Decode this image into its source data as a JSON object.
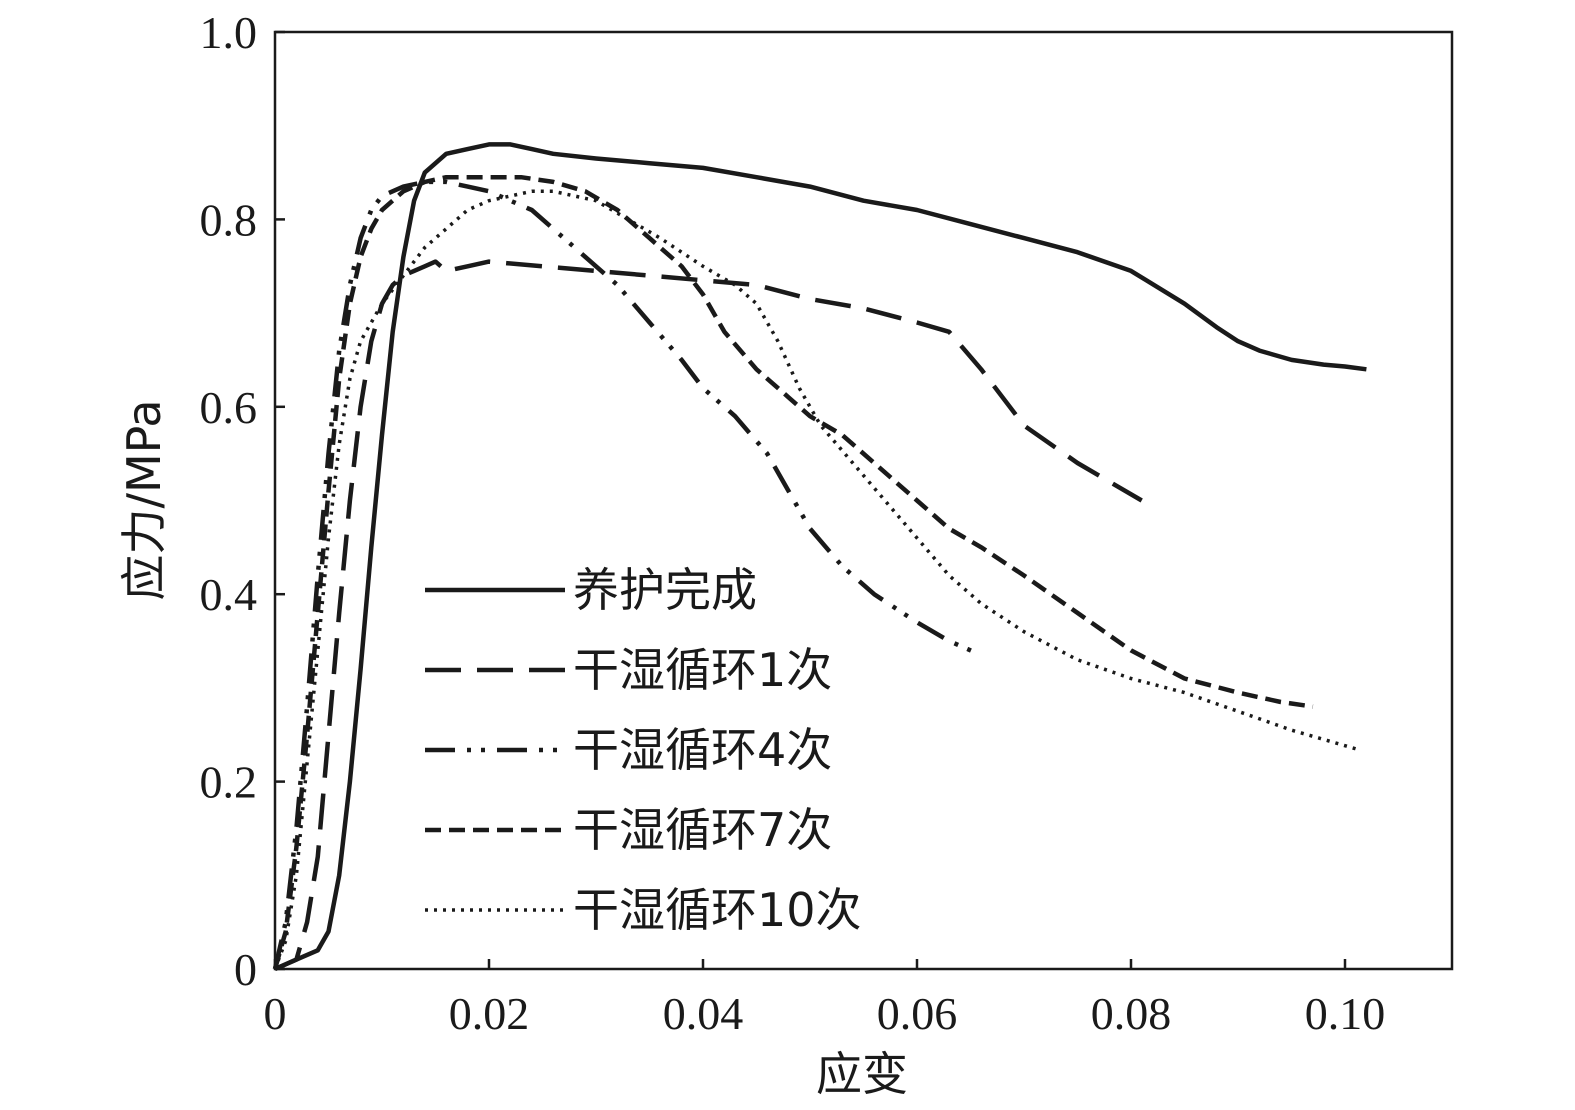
{
  "chart_data": {
    "type": "line",
    "xlabel": "应变",
    "ylabel": "应力/MPa",
    "xlim": [
      0,
      0.11
    ],
    "ylim": [
      0,
      1.0
    ],
    "xticks": [
      0,
      0.02,
      0.04,
      0.06,
      0.08,
      0.1
    ],
    "xtick_labels": [
      "0",
      "0.02",
      "0.04",
      "0.06",
      "0.08",
      "0.10"
    ],
    "yticks": [
      0,
      0.2,
      0.4,
      0.6,
      0.8,
      1.0
    ],
    "ytick_labels": [
      "0",
      "0.2",
      "0.4",
      "0.6",
      "0.8",
      "1.0"
    ],
    "grid": false,
    "legend_position": "center-left",
    "series": [
      {
        "name": "养护完成",
        "style": "solid",
        "x": [
          0,
          0.002,
          0.004,
          0.005,
          0.006,
          0.007,
          0.008,
          0.009,
          0.01,
          0.011,
          0.012,
          0.013,
          0.014,
          0.015,
          0.016,
          0.018,
          0.02,
          0.022,
          0.024,
          0.026,
          0.03,
          0.035,
          0.04,
          0.045,
          0.05,
          0.055,
          0.06,
          0.065,
          0.07,
          0.075,
          0.08,
          0.085,
          0.088,
          0.09,
          0.092,
          0.095,
          0.098,
          0.1,
          0.102
        ],
        "y": [
          0,
          0.01,
          0.02,
          0.04,
          0.1,
          0.2,
          0.32,
          0.45,
          0.57,
          0.68,
          0.76,
          0.82,
          0.85,
          0.86,
          0.87,
          0.875,
          0.88,
          0.88,
          0.875,
          0.87,
          0.865,
          0.86,
          0.855,
          0.845,
          0.835,
          0.82,
          0.81,
          0.795,
          0.78,
          0.765,
          0.745,
          0.71,
          0.685,
          0.67,
          0.66,
          0.65,
          0.645,
          0.643,
          0.64
        ]
      },
      {
        "name": "干湿循环1次",
        "style": "long-dash",
        "x": [
          0,
          0.002,
          0.003,
          0.004,
          0.005,
          0.006,
          0.007,
          0.008,
          0.009,
          0.01,
          0.011,
          0.012,
          0.013,
          0.014,
          0.015,
          0.016,
          0.018,
          0.02,
          0.025,
          0.03,
          0.035,
          0.04,
          0.045,
          0.05,
          0.055,
          0.06,
          0.063,
          0.066,
          0.07,
          0.075,
          0.078,
          0.081
        ],
        "y": [
          0,
          0.01,
          0.05,
          0.12,
          0.25,
          0.38,
          0.5,
          0.6,
          0.67,
          0.71,
          0.73,
          0.74,
          0.745,
          0.75,
          0.755,
          0.745,
          0.75,
          0.755,
          0.75,
          0.745,
          0.74,
          0.735,
          0.73,
          0.715,
          0.705,
          0.69,
          0.68,
          0.64,
          0.58,
          0.54,
          0.52,
          0.5
        ]
      },
      {
        "name": "干湿循环4次",
        "style": "dash-dot-dot",
        "x": [
          0,
          0.001,
          0.002,
          0.003,
          0.004,
          0.005,
          0.006,
          0.007,
          0.008,
          0.009,
          0.01,
          0.012,
          0.014,
          0.016,
          0.018,
          0.02,
          0.022,
          0.024,
          0.026,
          0.028,
          0.03,
          0.032,
          0.035,
          0.038,
          0.04,
          0.043,
          0.046,
          0.048,
          0.05,
          0.053,
          0.056,
          0.058,
          0.06,
          0.063,
          0.066
        ],
        "y": [
          0,
          0.05,
          0.15,
          0.28,
          0.42,
          0.55,
          0.66,
          0.73,
          0.78,
          0.81,
          0.825,
          0.835,
          0.84,
          0.84,
          0.835,
          0.83,
          0.82,
          0.81,
          0.79,
          0.77,
          0.75,
          0.73,
          0.69,
          0.65,
          0.62,
          0.59,
          0.55,
          0.51,
          0.47,
          0.43,
          0.4,
          0.385,
          0.37,
          0.35,
          0.335
        ]
      },
      {
        "name": "干湿循环7次",
        "style": "short-dash",
        "x": [
          0,
          0.001,
          0.002,
          0.003,
          0.004,
          0.005,
          0.006,
          0.007,
          0.008,
          0.009,
          0.01,
          0.012,
          0.014,
          0.016,
          0.018,
          0.02,
          0.023,
          0.026,
          0.029,
          0.032,
          0.035,
          0.038,
          0.04,
          0.042,
          0.045,
          0.048,
          0.05,
          0.053,
          0.056,
          0.058,
          0.06,
          0.063,
          0.066,
          0.07,
          0.075,
          0.08,
          0.085,
          0.09,
          0.094,
          0.097
        ],
        "y": [
          0,
          0.04,
          0.13,
          0.25,
          0.38,
          0.51,
          0.63,
          0.71,
          0.76,
          0.79,
          0.81,
          0.83,
          0.84,
          0.845,
          0.845,
          0.845,
          0.845,
          0.84,
          0.83,
          0.81,
          0.78,
          0.75,
          0.72,
          0.68,
          0.64,
          0.61,
          0.59,
          0.57,
          0.54,
          0.52,
          0.5,
          0.47,
          0.45,
          0.42,
          0.38,
          0.34,
          0.31,
          0.295,
          0.285,
          0.28
        ]
      },
      {
        "name": "干湿循环10次",
        "style": "dotted",
        "x": [
          0,
          0.001,
          0.002,
          0.003,
          0.004,
          0.005,
          0.006,
          0.007,
          0.008,
          0.01,
          0.012,
          0.014,
          0.016,
          0.018,
          0.02,
          0.022,
          0.024,
          0.026,
          0.028,
          0.03,
          0.033,
          0.036,
          0.04,
          0.043,
          0.045,
          0.047,
          0.049,
          0.051,
          0.054,
          0.057,
          0.06,
          0.063,
          0.066,
          0.07,
          0.075,
          0.08,
          0.085,
          0.09,
          0.095,
          0.101
        ],
        "y": [
          0,
          0.03,
          0.1,
          0.22,
          0.34,
          0.46,
          0.56,
          0.63,
          0.67,
          0.71,
          0.74,
          0.77,
          0.79,
          0.81,
          0.82,
          0.825,
          0.83,
          0.83,
          0.825,
          0.82,
          0.8,
          0.78,
          0.75,
          0.73,
          0.71,
          0.67,
          0.62,
          0.58,
          0.54,
          0.5,
          0.46,
          0.42,
          0.39,
          0.36,
          0.33,
          0.31,
          0.295,
          0.275,
          0.255,
          0.235
        ]
      }
    ]
  }
}
